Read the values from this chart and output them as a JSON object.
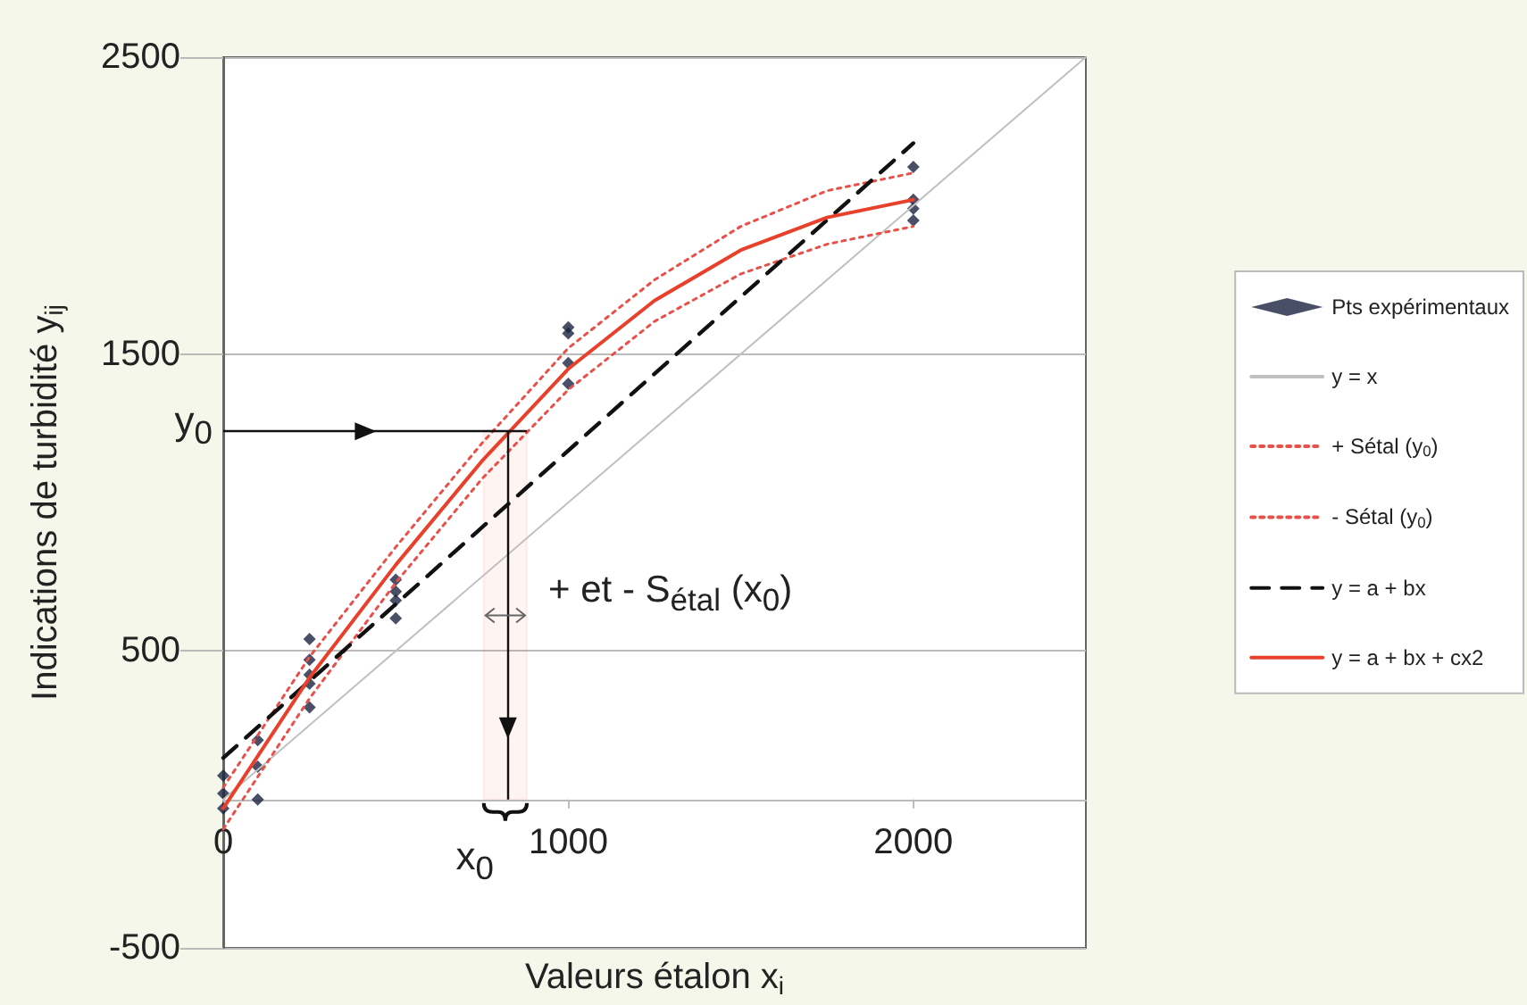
{
  "chart_data": {
    "type": "scatter",
    "xlabel": "Valeurs étalon x$_{i}$",
    "ylabel": "Indications de turbidité y$_{ij}$",
    "xlim": [
      0,
      2500
    ],
    "xticks": [
      0,
      1000,
      2000
    ],
    "ylim": [
      -500,
      2500
    ],
    "yticks": [
      -500,
      500,
      1500,
      2500
    ],
    "grid": "y",
    "legend": "right",
    "series": [
      {
        "name": "Pts expérimentaux",
        "marker": "diamond",
        "color": "#1a2340",
        "x": [
          0,
          0,
          0,
          100,
          100,
          100,
          250,
          250,
          250,
          250,
          250,
          500,
          500,
          500,
          500,
          1000,
          1000,
          1000,
          1000,
          2000,
          2000,
          2000,
          2000
        ],
        "values": [
          80,
          20,
          -30,
          200,
          110,
          0,
          540,
          470,
          420,
          390,
          310,
          740,
          700,
          670,
          610,
          1590,
          1570,
          1470,
          1400,
          2130,
          2020,
          1990,
          1950
        ]
      },
      {
        "name": "y = x",
        "type": "line",
        "marker": "none",
        "line_style": "solid",
        "color": "#c0c0c0",
        "x": [
          0,
          2500
        ],
        "values": [
          0,
          2500
        ]
      },
      {
        "name": "+ Sétal (y$_{0}$)",
        "type": "line",
        "marker": "none",
        "line_style": "dotted",
        "color": "#e8504a",
        "x": [
          0,
          250,
          500,
          750,
          1000,
          1250,
          1500,
          1750,
          2000
        ],
        "values": [
          40,
          480,
          850,
          1200,
          1520,
          1750,
          1930,
          2050,
          2110
        ]
      },
      {
        "name": "- Sétal (y$_{0}$)",
        "type": "line",
        "marker": "none",
        "line_style": "dotted",
        "color": "#e8504a",
        "x": [
          0,
          250,
          500,
          750,
          1000,
          1250,
          1500,
          1750,
          2000
        ],
        "values": [
          -100,
          340,
          730,
          1080,
          1380,
          1610,
          1770,
          1870,
          1930
        ]
      },
      {
        "name": "y = a + bx",
        "type": "line",
        "marker": "none",
        "line_style": "dashed",
        "color": "#111111",
        "x": [
          0,
          2000
        ],
        "values": [
          140,
          2210
        ]
      },
      {
        "name": "y = a + bx + cx2",
        "type": "line",
        "marker": "none",
        "line_style": "solid",
        "color": "#e8402a",
        "x": [
          0,
          250,
          500,
          750,
          1000,
          1250,
          1500,
          1750,
          2000
        ],
        "values": [
          -30,
          410,
          790,
          1140,
          1450,
          1680,
          1850,
          1960,
          2020
        ]
      }
    ],
    "ref_lines": [
      {
        "axis": "y",
        "value": 1240,
        "label": "y$_{0}$",
        "color": "#111111"
      },
      {
        "axis": "x",
        "value": 825,
        "label": "x$_{0}$",
        "color": "#111111"
      }
    ],
    "bands": [
      {
        "axis": "x",
        "from": 755,
        "to": 880,
        "label": "+ et - S$_{étal}$ (x$_{0}$)",
        "color": "#e8402a"
      }
    ]
  }
}
